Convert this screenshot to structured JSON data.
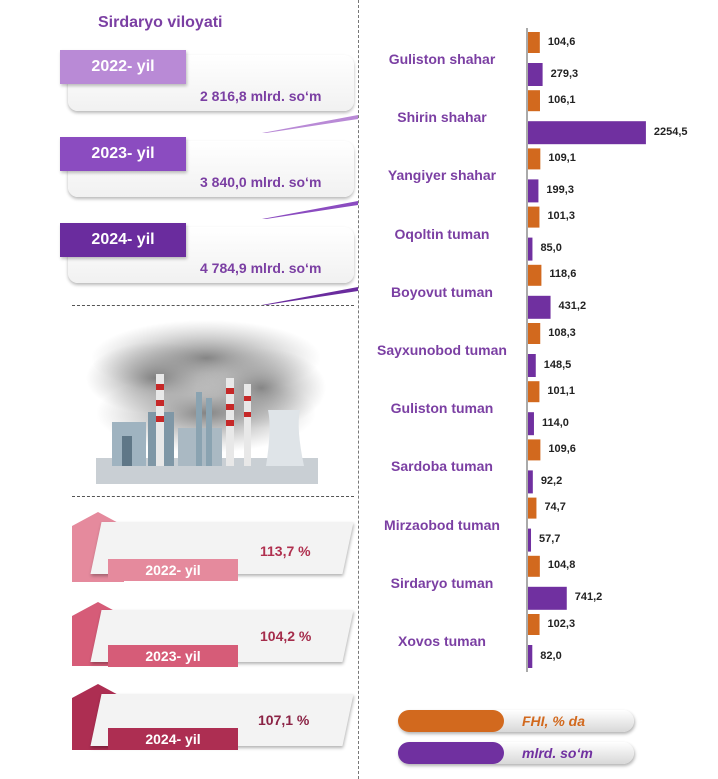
{
  "region_title": "Sirdaryo viloyati",
  "volumes": [
    {
      "year": "2022- yil",
      "value": "2 816,8 mlrd. so‘m"
    },
    {
      "year": "2023- yil",
      "value": "3 840,0 mlrd. so‘m"
    },
    {
      "year": "2024- yil",
      "value": "4 784,9 mlrd. so‘m"
    }
  ],
  "growth": [
    {
      "year": "2022- yil",
      "value": "113,7 %"
    },
    {
      "year": "2023- yil",
      "value": "104,2 %"
    },
    {
      "year": "2024- yil",
      "value": "107,1 %"
    }
  ],
  "colors": {
    "orange": "#d2691e",
    "purple": "#7030a0",
    "tab_2022": "#b98ad6",
    "tab_2023": "#8b4cc0",
    "tab_2024": "#6a2c9e",
    "pink_2022": "#e58a9d",
    "pink_2023": "#d65c78",
    "pink_2024": "#ad2e52"
  },
  "chart_data": {
    "type": "bar",
    "categories": [
      "Guliston shahar",
      "Shirin shahar",
      "Yangiyer shahar",
      "Oqoltin tuman",
      "Boyovut tuman",
      "Sayxunobod tuman",
      "Guliston tuman",
      "Sardoba tuman",
      "Mirzaobod tuman",
      "Sirdaryo tuman",
      "Xovos tuman"
    ],
    "series": [
      {
        "name": "FHI, % da",
        "values": [
          104.6,
          106.1,
          109.1,
          101.3,
          118.6,
          108.3,
          101.1,
          109.6,
          74.7,
          104.8,
          102.3
        ],
        "labels": [
          "104,6",
          "106,1",
          "109,1",
          "101,3",
          "118,6",
          "108,3",
          "101,1",
          "109,6",
          "74,7",
          "104,8",
          "102,3"
        ]
      },
      {
        "name": "mlrd. so‘m",
        "values": [
          279.3,
          2254.5,
          199.3,
          85.0,
          431.2,
          148.5,
          114.0,
          92.2,
          57.7,
          741.2,
          82.0
        ],
        "labels": [
          "279,3",
          "2254,5",
          "199,3",
          "85,0",
          "431,2",
          "148,5",
          "114,0",
          "92,2",
          "57,7",
          "741,2",
          "82,0"
        ]
      }
    ],
    "orientation": "horizontal",
    "legend": "bottom"
  }
}
